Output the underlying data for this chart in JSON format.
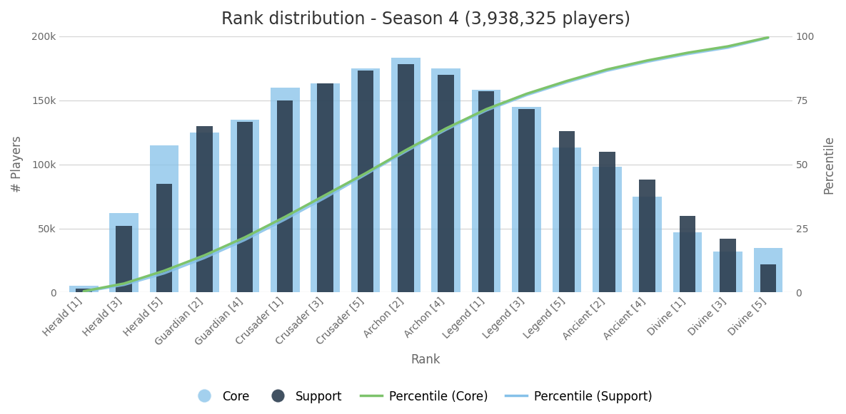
{
  "title": "Rank distribution - Season 4 (3,938,325 players)",
  "categories": [
    "Herald [1]",
    "Herald [3]",
    "Herald [5]",
    "Guardian [2]",
    "Guardian [4]",
    "Crusader [1]",
    "Crusader [3]",
    "Crusader [5]",
    "Archon [2]",
    "Archon [4]",
    "Legend [1]",
    "Legend [3]",
    "Legend [5]",
    "Ancient [2]",
    "Ancient [4]",
    "Divine [1]",
    "Divine [3]",
    "Divine [5]"
  ],
  "core_values": [
    5000,
    62000,
    115000,
    125000,
    135000,
    160000,
    163000,
    175000,
    183000,
    175000,
    158000,
    145000,
    113000,
    98000,
    75000,
    47000,
    32000,
    35000
  ],
  "support_values": [
    3000,
    52000,
    85000,
    130000,
    133000,
    150000,
    163000,
    173000,
    178000,
    170000,
    157000,
    143000,
    126000,
    110000,
    88000,
    60000,
    42000,
    22000
  ],
  "percentile_core": [
    0.5,
    3.5,
    8.5,
    14.5,
    21.5,
    29.5,
    38.0,
    46.5,
    55.5,
    64.0,
    71.5,
    77.5,
    82.5,
    87.0,
    90.5,
    93.5,
    96.0,
    99.5
  ],
  "percentile_support": [
    0.3,
    3.0,
    7.5,
    13.5,
    20.5,
    28.5,
    37.0,
    46.0,
    55.0,
    63.5,
    71.0,
    77.0,
    82.0,
    86.5,
    90.0,
    93.0,
    95.5,
    99.3
  ],
  "core_color": "#85C1E9",
  "support_color": "#2C3E50",
  "percentile_core_color": "#7DC36B",
  "percentile_support_color": "#85C1E9",
  "xlabel": "Rank",
  "ylabel_left": "# Players",
  "ylabel_right": "Percentile",
  "ylim_left": [
    0,
    200000
  ],
  "ylim_right": [
    0,
    100
  ],
  "yticks_left": [
    0,
    50000,
    100000,
    150000,
    200000
  ],
  "yticks_left_labels": [
    "0",
    "50k",
    "100k",
    "150k",
    "200k"
  ],
  "yticks_right": [
    0,
    25,
    50,
    75,
    100
  ],
  "background_color": "#ffffff",
  "grid_color": "#d5d5d5",
  "title_fontsize": 17,
  "axis_label_fontsize": 12,
  "tick_fontsize": 10,
  "legend_fontsize": 12
}
